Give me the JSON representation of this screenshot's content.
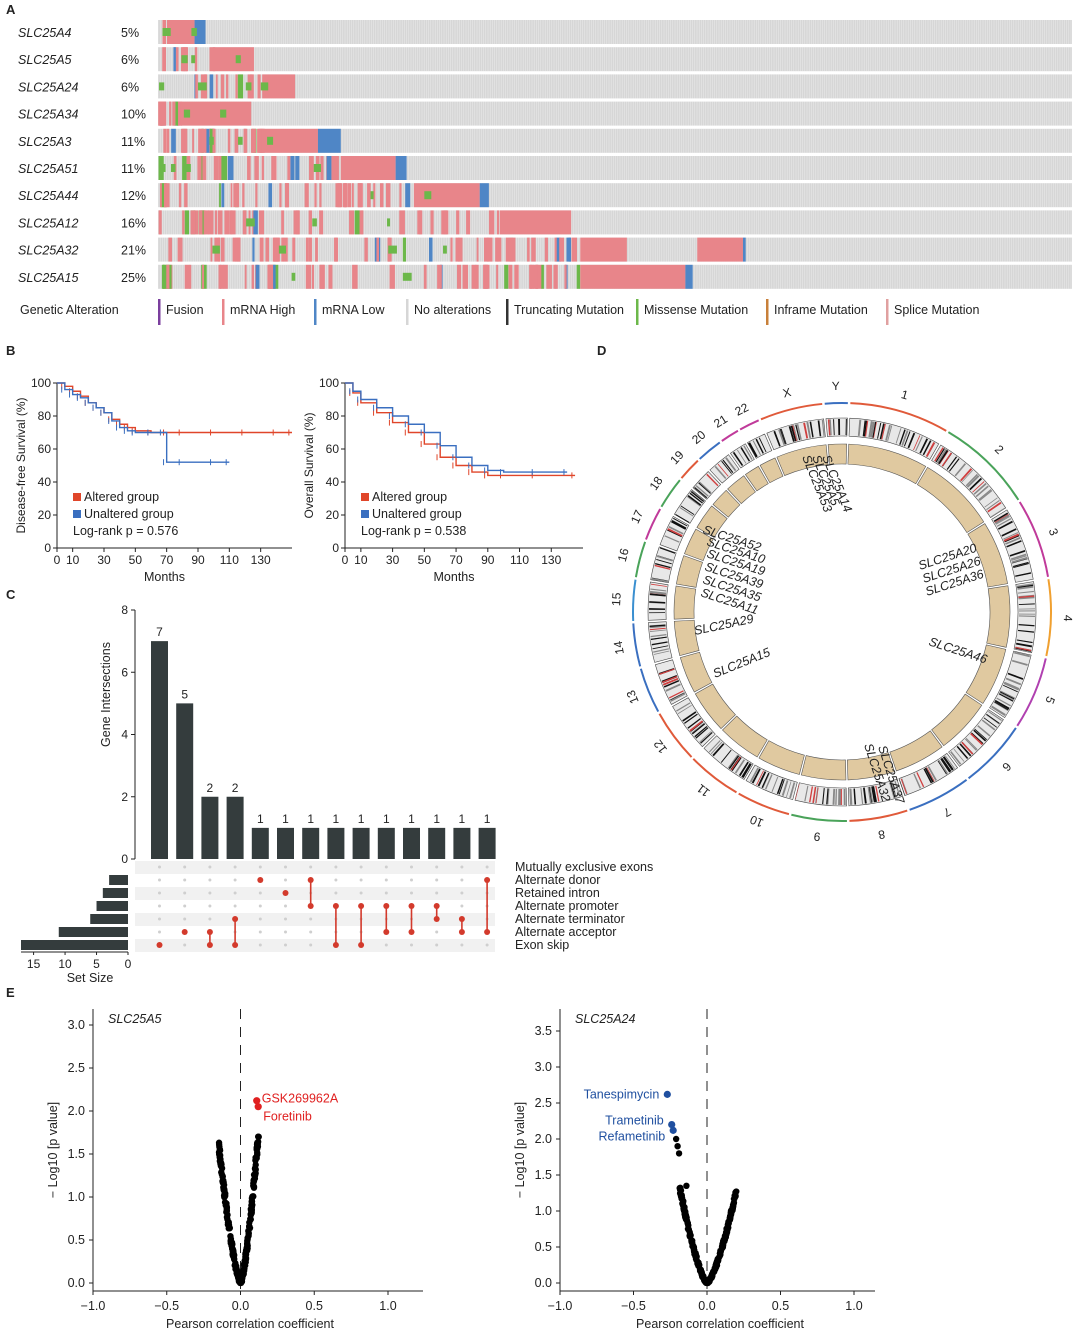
{
  "panel_labels": {
    "a": "A",
    "b": "B",
    "c": "C",
    "d": "D",
    "e": "E"
  },
  "colors": {
    "mrna_high": "#e8858a",
    "mrna_low": "#4f86c6",
    "none": "#d6d6d6",
    "missense": "#6cb84a",
    "truncating": "#333333",
    "fusion": "#7b3f9e",
    "inframe": "#c8803a",
    "splice": "#e0a0a0",
    "altered": "#e0462a",
    "unaltered": "#3a6fc0",
    "bar": "#343c3d",
    "dot_on": "#d33a2c",
    "dot_off": "#cfcfcf",
    "volcano_black": "#000000",
    "volcano_red": "#e02020",
    "volcano_blue": "#2050a0"
  },
  "oncoprint": {
    "genes": [
      {
        "name": "SLC25A4",
        "pct": "5%"
      },
      {
        "name": "SLC25A5",
        "pct": "6%"
      },
      {
        "name": "SLC25A24",
        "pct": "6%"
      },
      {
        "name": "SLC25A34",
        "pct": "10%"
      },
      {
        "name": "SLC25A3",
        "pct": "11%"
      },
      {
        "name": "SLC25A51",
        "pct": "11%"
      },
      {
        "name": "SLC25A44",
        "pct": "12%"
      },
      {
        "name": "SLC25A12",
        "pct": "16%"
      },
      {
        "name": "SLC25A32",
        "pct": "21%"
      },
      {
        "name": "SLC25A15",
        "pct": "25%"
      }
    ],
    "legend_title": "Genetic Alteration",
    "legend": [
      {
        "label": "Fusion",
        "color_key": "fusion"
      },
      {
        "label": "mRNA High",
        "color_key": "mrna_high"
      },
      {
        "label": "mRNA Low",
        "color_key": "mrna_low"
      },
      {
        "label": "No alterations",
        "color_key": "none"
      },
      {
        "label": "Truncating Mutation",
        "color_key": "truncating"
      },
      {
        "label": "Missense Mutation",
        "color_key": "missense"
      },
      {
        "label": "Inframe Mutation",
        "color_key": "inframe"
      },
      {
        "label": "Splice Mutation",
        "color_key": "splice"
      }
    ]
  },
  "chart_data": [
    {
      "id": "km-dfs",
      "type": "line",
      "title": "",
      "xlabel": "Months",
      "ylabel": "Disease-free Survival (%)",
      "xticks": [
        "0",
        "10",
        "30",
        "50",
        "70",
        "90",
        "110",
        "130"
      ],
      "yticks": [
        "0",
        "20",
        "40",
        "60",
        "80",
        "100"
      ],
      "xlim": [
        0,
        150
      ],
      "ylim": [
        0,
        100
      ],
      "series": [
        {
          "name": "Altered group",
          "x": [
            0,
            5,
            10,
            15,
            20,
            25,
            30,
            35,
            40,
            45,
            50,
            60,
            70,
            80,
            100,
            120,
            140,
            150
          ],
          "y": [
            100,
            98,
            95,
            92,
            88,
            85,
            82,
            78,
            75,
            73,
            71,
            70,
            70,
            70,
            70,
            70,
            70,
            70
          ]
        },
        {
          "name": "Unaltered group",
          "x": [
            0,
            5,
            10,
            15,
            20,
            25,
            30,
            35,
            40,
            45,
            50,
            60,
            68,
            70,
            80,
            100,
            110
          ],
          "y": [
            100,
            96,
            93,
            91,
            88,
            85,
            82,
            77,
            73,
            71,
            70,
            70,
            70,
            52,
            52,
            52,
            52
          ]
        }
      ],
      "annotation": "Log-rank p = 0.576"
    },
    {
      "id": "km-os",
      "type": "line",
      "title": "",
      "xlabel": "Months",
      "ylabel": "Overall Survival (%)",
      "xticks": [
        "0",
        "10",
        "30",
        "50",
        "70",
        "90",
        "110",
        "130"
      ],
      "yticks": [
        "0",
        "20",
        "40",
        "60",
        "80",
        "100"
      ],
      "xlim": [
        0,
        150
      ],
      "ylim": [
        0,
        100
      ],
      "series": [
        {
          "name": "Altered group",
          "x": [
            0,
            5,
            10,
            20,
            30,
            40,
            50,
            60,
            70,
            80,
            90,
            100,
            120,
            145
          ],
          "y": [
            100,
            94,
            88,
            82,
            76,
            70,
            63,
            55,
            50,
            46,
            44,
            44,
            44,
            44
          ]
        },
        {
          "name": "Unaltered group",
          "x": [
            0,
            5,
            10,
            20,
            30,
            40,
            50,
            60,
            70,
            80,
            90,
            100,
            120,
            140
          ],
          "y": [
            100,
            95,
            90,
            85,
            80,
            75,
            70,
            62,
            55,
            50,
            47,
            46,
            46,
            46
          ]
        }
      ],
      "annotation": "Log-rank p = 0.538"
    },
    {
      "id": "upset",
      "type": "bar",
      "ylabel": "Gene Intersections",
      "yticks": [
        "0",
        "2",
        "4",
        "6",
        "8"
      ],
      "ylim": [
        0,
        8
      ],
      "values": [
        7,
        5,
        2,
        2,
        1,
        1,
        1,
        1,
        1,
        1,
        1,
        1,
        1,
        1
      ],
      "sets": [
        "Mutually exclusive exons",
        "Alternate donor",
        "Retained intron",
        "Alternate promoter",
        "Alternate terminator",
        "Alternate acceptor",
        "Exon skip"
      ],
      "set_sizes": [
        0,
        3,
        4,
        5,
        6,
        11,
        17
      ],
      "set_size_label": "Set Size",
      "set_size_ticks": [
        "15",
        "10",
        "5",
        "0"
      ],
      "membership": [
        [
          6
        ],
        [
          5
        ],
        [
          5,
          6
        ],
        [
          4,
          6
        ],
        [
          1
        ],
        [
          2
        ],
        [
          1,
          3
        ],
        [
          3,
          6
        ],
        [
          3,
          6
        ],
        [
          3,
          5
        ],
        [
          3,
          5
        ],
        [
          3,
          4
        ],
        [
          4,
          5
        ],
        [
          1,
          5
        ]
      ]
    },
    {
      "id": "volcano-a5",
      "type": "scatter",
      "title": "SLC25A5",
      "xlabel": "Pearson correlation coefficient",
      "ylabel": "− Log10 [p value]",
      "xticks": [
        "−1.0",
        "−0.5",
        "0.0",
        "0.5",
        "1.0"
      ],
      "yticks": [
        "0.0",
        "0.5",
        "1.0",
        "1.5",
        "2.0",
        "2.5",
        "3.0"
      ],
      "xlim": [
        -1.0,
        1.0
      ],
      "ylim": [
        0,
        3.0
      ],
      "highlights": [
        {
          "name": "GSK269962A",
          "x": 0.11,
          "y": 2.12
        },
        {
          "name": "Foretinib",
          "x": 0.12,
          "y": 2.05
        }
      ]
    },
    {
      "id": "volcano-a24",
      "type": "scatter",
      "title": "SLC25A24",
      "xlabel": "Pearson correlation coefficient",
      "ylabel": "− Log10 [p value]",
      "xticks": [
        "−1.0",
        "−0.5",
        "0.0",
        "0.5",
        "1.0"
      ],
      "yticks": [
        "0.0",
        "0.5",
        "1.0",
        "1.5",
        "2.0",
        "2.5",
        "3.0",
        "3.5"
      ],
      "xlim": [
        -1.0,
        1.0
      ],
      "ylim": [
        0,
        3.5
      ],
      "highlights": [
        {
          "name": "Tanespimycin",
          "x": -0.27,
          "y": 2.62
        },
        {
          "name": "Trametinib",
          "x": -0.24,
          "y": 2.2
        },
        {
          "name": "Refametinib",
          "x": -0.23,
          "y": 2.12
        }
      ]
    }
  ],
  "circos": {
    "chromosomes": [
      "1",
      "2",
      "3",
      "4",
      "5",
      "6",
      "7",
      "8",
      "9",
      "10",
      "11",
      "12",
      "13",
      "14",
      "15",
      "16",
      "17",
      "18",
      "19",
      "20",
      "21",
      "22",
      "X",
      "Y"
    ],
    "gene_labels": [
      {
        "text": "SLC25A14"
      },
      {
        "text": "SLC25A5"
      },
      {
        "text": "SLC25A53"
      },
      {
        "text": "SLC25A20"
      },
      {
        "text": "SLC25A26"
      },
      {
        "text": "SLC25A36"
      },
      {
        "text": "SLC25A46"
      },
      {
        "text": "SLC25A37"
      },
      {
        "text": "SLC25A32"
      },
      {
        "text": "SLC25A15"
      },
      {
        "text": "SLC25A29"
      },
      {
        "text": "SLC25A52"
      },
      {
        "text": "SLC25A10"
      },
      {
        "text": "SLC25A19"
      },
      {
        "text": "SLC25A39"
      },
      {
        "text": "SLC25A35"
      },
      {
        "text": "SLC25A11"
      }
    ]
  },
  "km_legend": {
    "altered": "Altered group",
    "unaltered": "Unaltered group"
  }
}
